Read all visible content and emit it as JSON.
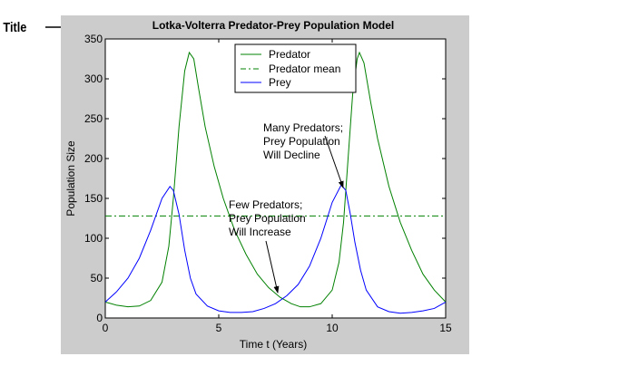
{
  "callout": {
    "label": "Title"
  },
  "chart_data": {
    "type": "line",
    "title": "Lotka-Volterra Predator-Prey Population Model",
    "xlabel": "Time t (Years)",
    "ylabel": "Population Size",
    "xlim": [
      0,
      15
    ],
    "ylim": [
      0,
      350
    ],
    "xticks": [
      0,
      5,
      10,
      15
    ],
    "yticks": [
      0,
      50,
      100,
      150,
      200,
      250,
      300,
      350
    ],
    "grid": false,
    "legend_position": "top-center",
    "series": [
      {
        "name": "Predator",
        "color": "#008000",
        "style": "solid",
        "x": [
          0,
          0.5,
          1,
          1.5,
          2,
          2.5,
          2.8,
          3,
          3.25,
          3.5,
          3.7,
          3.9,
          4.1,
          4.4,
          4.8,
          5.2,
          5.7,
          6.2,
          6.7,
          7.2,
          7.7,
          8.2,
          8.6,
          9,
          9.5,
          10,
          10.3,
          10.5,
          10.7,
          10.9,
          11.1,
          11.2,
          11.4,
          11.7,
          12,
          12.5,
          13,
          13.5,
          14,
          14.5,
          15
        ],
        "y": [
          20,
          16,
          14,
          15,
          22,
          45,
          90,
          150,
          240,
          310,
          333,
          325,
          290,
          240,
          190,
          150,
          110,
          80,
          55,
          38,
          26,
          18,
          14,
          14,
          18,
          35,
          70,
          120,
          200,
          280,
          325,
          333,
          320,
          270,
          225,
          165,
          120,
          85,
          55,
          35,
          20
        ]
      },
      {
        "name": "Predator mean",
        "color": "#008000",
        "style": "dashdot",
        "x": [
          0,
          15
        ],
        "y": [
          128,
          128
        ]
      },
      {
        "name": "Prey",
        "color": "#0000ff",
        "style": "solid",
        "x": [
          0,
          0.5,
          1,
          1.5,
          2,
          2.5,
          2.85,
          3,
          3.25,
          3.5,
          3.75,
          4,
          4.5,
          5,
          5.5,
          6,
          6.5,
          7,
          7.5,
          8,
          8.5,
          9,
          9.5,
          10,
          10.4,
          10.6,
          10.8,
          11,
          11.25,
          11.5,
          12,
          12.5,
          13,
          13.5,
          14,
          14.5,
          15
        ],
        "y": [
          20,
          33,
          50,
          75,
          110,
          150,
          165,
          160,
          130,
          85,
          50,
          30,
          15,
          9,
          7,
          7,
          8,
          12,
          18,
          28,
          42,
          65,
          100,
          145,
          167,
          160,
          130,
          95,
          60,
          35,
          14,
          8,
          6,
          7,
          9,
          12,
          20
        ]
      }
    ],
    "annotations": [
      {
        "lines": [
          "Many Predators;",
          "Prey Population",
          "Will Decline"
        ],
        "arrow_to": [
          10.3,
          167
        ]
      },
      {
        "lines": [
          "Few Predators;",
          "Prey Population",
          "Will Increase"
        ],
        "arrow_to": [
          7.7,
          22
        ]
      }
    ]
  }
}
